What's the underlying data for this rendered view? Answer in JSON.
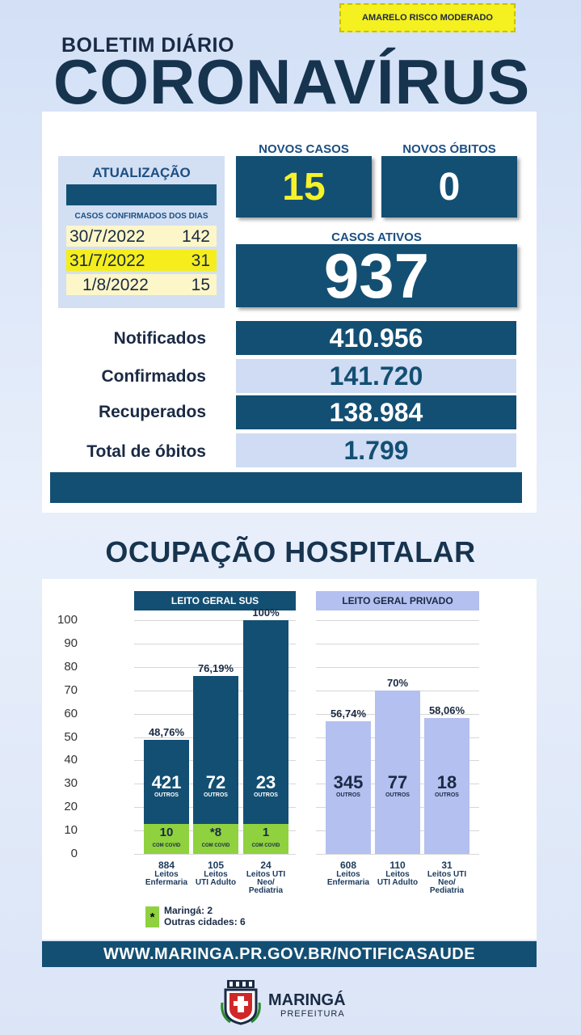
{
  "header": {
    "risk_label": "AMARELO RISCO MODERADO",
    "subtitle": "BOLETIM DIÁRIO",
    "title": "CORONAVÍRUS"
  },
  "update": {
    "title": "ATUALIZAÇÃO",
    "caption": "CASOS CONFIRMADOS DOS DIAS",
    "rows": [
      {
        "date": "30/7/2022",
        "count": "142"
      },
      {
        "date": "31/7/2022",
        "count": "31"
      },
      {
        "date": "1/8/2022",
        "count": "15"
      }
    ]
  },
  "novos_casos": {
    "label": "NOVOS CASOS",
    "value": "15"
  },
  "novos_obitos": {
    "label": "NOVOS ÓBITOS",
    "value": "0"
  },
  "casos_ativos": {
    "label": "CASOS ATIVOS",
    "value": "937"
  },
  "stats": [
    {
      "label": "Notificados",
      "value": "410.956"
    },
    {
      "label": "Confirmados",
      "value": "141.720"
    },
    {
      "label": "Recuperados",
      "value": "138.984"
    },
    {
      "label": "Total de óbitos",
      "value": "1.799"
    }
  ],
  "hospital": {
    "title": "OCUPAÇÃO HOSPITALAR",
    "sus_label": "LEITO GERAL SUS",
    "privado_label": "LEITO GERAL PRIVADO",
    "outros_label": "OUTROS",
    "covid_label": "COM COVID",
    "note_icon": "*",
    "note_lines": [
      "Maringá: 2",
      "Outras cidades: 6"
    ]
  },
  "chart_data": {
    "type": "bar",
    "ylim": [
      0,
      100
    ],
    "yticks": [
      "100",
      "90",
      "80",
      "70",
      "60",
      "50",
      "40",
      "30",
      "20",
      "10",
      "0"
    ],
    "colors": {
      "sus": "#134f73",
      "privado": "#b4c0f0",
      "covid": "#8fd13f"
    },
    "groups": [
      {
        "name": "LEITO GERAL SUS",
        "bars": [
          {
            "pct": 48.76,
            "pct_label": "48,76%",
            "outros": "421",
            "covid": "10",
            "x_count": "884",
            "x_label": [
              "Leitos",
              "Enfermaria"
            ]
          },
          {
            "pct": 76.19,
            "pct_label": "76,19%",
            "outros": "72",
            "covid": "*8",
            "x_count": "105",
            "x_label": [
              "Leitos",
              "UTI Adulto"
            ]
          },
          {
            "pct": 100,
            "pct_label": "100%",
            "outros": "23",
            "covid": "1",
            "x_count": "24",
            "x_label": [
              "Leitos UTI",
              "Neo/",
              "Pediatria"
            ]
          }
        ]
      },
      {
        "name": "LEITO GERAL PRIVADO",
        "bars": [
          {
            "pct": 56.74,
            "pct_label": "56,74%",
            "outros": "345",
            "x_count": "608",
            "x_label": [
              "Leitos",
              "Enfermaria"
            ]
          },
          {
            "pct": 70,
            "pct_label": "70%",
            "outros": "77",
            "x_count": "110",
            "x_label": [
              "Leitos",
              "UTI Adulto"
            ]
          },
          {
            "pct": 58.06,
            "pct_label": "58,06%",
            "outros": "18",
            "x_count": "31",
            "x_label": [
              "Leitos UTI",
              "Neo/",
              "Pediatria"
            ]
          }
        ]
      }
    ]
  },
  "footer": {
    "url": "WWW.MARINGA.PR.GOV.BR/NOTIFICASAUDE",
    "logo_name": "MARINGÁ",
    "logo_sub": "PREFEITURA"
  }
}
